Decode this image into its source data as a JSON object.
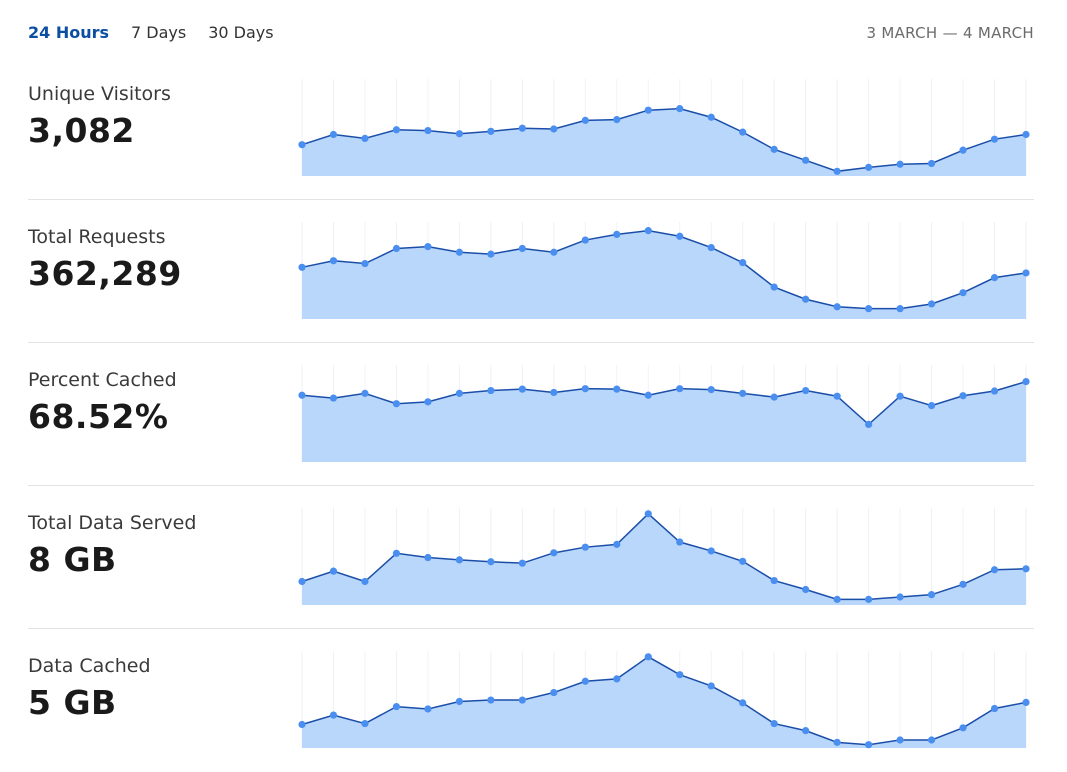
{
  "tabs": [
    {
      "label": "24 Hours",
      "active": true
    },
    {
      "label": "7 Days",
      "active": false
    },
    {
      "label": "30 Days",
      "active": false
    }
  ],
  "date_range": "3 MARCH — 4 MARCH",
  "colors": {
    "accent": "#0b4ea2",
    "area_fill": "#b9d6fb",
    "line": "#1a4ea8",
    "point": "#4a8ff0",
    "grid": "#eef2f8",
    "divider": "#e3e3e3"
  },
  "metrics": [
    {
      "label": "Unique Visitors",
      "value": "3,082",
      "chart_data": {
        "type": "area",
        "values": [
          2.0,
          2.65,
          2.4,
          2.95,
          2.9,
          2.7,
          2.85,
          3.05,
          3.0,
          3.55,
          3.6,
          4.2,
          4.3,
          3.75,
          2.8,
          1.7,
          1.0,
          0.3,
          0.55,
          0.75,
          0.8,
          1.65,
          2.35,
          2.65
        ],
        "ylim": [
          0,
          6
        ]
      }
    },
    {
      "label": "Total Requests",
      "value": "362,289",
      "chart_data": {
        "type": "area",
        "values": [
          5.5,
          6.2,
          5.9,
          7.5,
          7.7,
          7.1,
          6.9,
          7.5,
          7.1,
          8.4,
          9.0,
          9.4,
          8.8,
          7.6,
          6.0,
          3.4,
          2.1,
          1.3,
          1.1,
          1.1,
          1.6,
          2.8,
          4.4,
          4.9
        ],
        "ylim": [
          0,
          10
        ]
      }
    },
    {
      "label": "Percent Cached",
      "value": "68.52%",
      "chart_data": {
        "type": "area",
        "values": [
          7.1,
          6.8,
          7.3,
          6.2,
          6.4,
          7.3,
          7.6,
          7.75,
          7.4,
          7.8,
          7.75,
          7.1,
          7.8,
          7.7,
          7.3,
          6.9,
          7.6,
          7.0,
          4.0,
          7.0,
          6.0,
          7.05,
          7.55,
          8.55
        ],
        "ylim": [
          0,
          10
        ]
      }
    },
    {
      "label": "Total Data Served",
      "value": "8 GB",
      "chart_data": {
        "type": "area",
        "values": [
          2.5,
          3.6,
          2.5,
          5.5,
          5.05,
          4.8,
          4.6,
          4.45,
          5.55,
          6.15,
          6.45,
          9.7,
          6.7,
          5.75,
          4.65,
          2.6,
          1.65,
          0.6,
          0.6,
          0.85,
          1.1,
          2.2,
          3.75,
          3.85
        ],
        "ylim": [
          0,
          10
        ]
      }
    },
    {
      "label": "Data Cached",
      "value": "5 GB",
      "chart_data": {
        "type": "area",
        "values": [
          2.5,
          3.5,
          2.6,
          4.4,
          4.15,
          4.95,
          5.1,
          5.1,
          5.9,
          7.1,
          7.35,
          9.7,
          7.8,
          6.6,
          4.8,
          2.6,
          1.85,
          0.6,
          0.35,
          0.85,
          0.85,
          2.15,
          4.2,
          4.85
        ],
        "ylim": [
          0,
          10
        ]
      }
    }
  ]
}
